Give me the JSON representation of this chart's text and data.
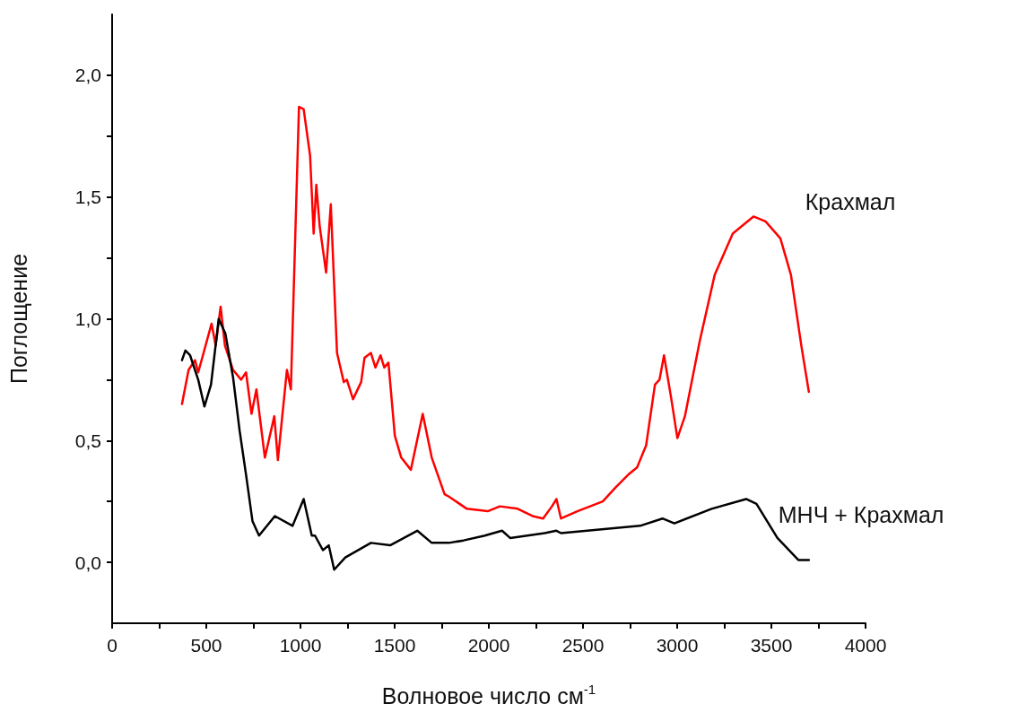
{
  "chart_data": {
    "type": "line",
    "xlabel": "Волновое число см$^{-1}$",
    "ylabel": "Поглощение",
    "xlim": [
      0,
      4000
    ],
    "xticks": [
      0,
      {
        "value": 250,
        "label": null
      },
      500,
      {
        "value": 750,
        "label": null
      },
      1000,
      {
        "value": 1250,
        "label": null
      },
      1500,
      {
        "value": 1750,
        "label": null
      },
      2000,
      {
        "value": 2250,
        "label": null
      },
      2500,
      {
        "value": 2750,
        "label": null
      },
      3000,
      {
        "value": 3250,
        "label": null
      },
      3500,
      {
        "value": 3750,
        "label": null
      },
      4000
    ],
    "ylim": [
      -0.25,
      2.25
    ],
    "yticks": [
      {
        "value": 0,
        "label": "0,0"
      },
      {
        "value": 0.25,
        "label": null
      },
      {
        "value": 0.5,
        "label": "0,5"
      },
      {
        "value": 0.75,
        "label": null
      },
      {
        "value": 1,
        "label": "1,0"
      },
      {
        "value": 1.25,
        "label": null
      },
      {
        "value": 1.5,
        "label": "1,5"
      },
      {
        "value": 1.75,
        "label": null
      },
      {
        "value": 2,
        "label": "2,0"
      }
    ],
    "grid": false,
    "legend": false,
    "marker": "none",
    "line_style": "solid",
    "series": [
      {
        "name": "Крахмал",
        "color": "#ff0000",
        "x": [
          371,
          406,
          440,
          457,
          482,
          528,
          550,
          576,
          599,
          642,
          685,
          711,
          740,
          766,
          811,
          861,
          880,
          928,
          949,
          992,
          1017,
          1051,
          1070,
          1084,
          1102,
          1136,
          1161,
          1194,
          1230,
          1246,
          1279,
          1322,
          1340,
          1374,
          1398,
          1425,
          1445,
          1467,
          1501,
          1535,
          1586,
          1649,
          1697,
          1765,
          1788,
          1883,
          1994,
          2058,
          2153,
          2232,
          2288,
          2335,
          2359,
          2383,
          2470,
          2605,
          2676,
          2740,
          2787,
          2835,
          2882,
          2906,
          2930,
          2969,
          3001,
          3041,
          3120,
          3199,
          3295,
          3405,
          3469,
          3548,
          3604,
          3659,
          3699
        ],
        "values": [
          0.65,
          0.79,
          0.83,
          0.78,
          0.85,
          0.98,
          0.89,
          1.05,
          0.89,
          0.79,
          0.75,
          0.78,
          0.61,
          0.71,
          0.43,
          0.6,
          0.42,
          0.79,
          0.71,
          1.87,
          1.86,
          1.67,
          1.35,
          1.55,
          1.38,
          1.19,
          1.47,
          0.86,
          0.74,
          0.75,
          0.67,
          0.74,
          0.84,
          0.86,
          0.8,
          0.85,
          0.8,
          0.82,
          0.52,
          0.43,
          0.38,
          0.61,
          0.43,
          0.28,
          0.27,
          0.22,
          0.21,
          0.23,
          0.22,
          0.19,
          0.18,
          0.23,
          0.26,
          0.18,
          0.21,
          0.25,
          0.31,
          0.36,
          0.39,
          0.48,
          0.73,
          0.75,
          0.85,
          0.67,
          0.51,
          0.6,
          0.91,
          1.18,
          1.35,
          1.42,
          1.4,
          1.33,
          1.18,
          0.89,
          0.7
        ]
      },
      {
        "name": "МНЧ + Крахмал",
        "color": "#000000",
        "x": [
          371,
          389,
          414,
          457,
          490,
          525,
          566,
          601,
          642,
          677,
          711,
          745,
          780,
          864,
          958,
          1017,
          1060,
          1077,
          1119,
          1150,
          1179,
          1238,
          1374,
          1476,
          1620,
          1697,
          1788,
          1866,
          1979,
          2070,
          2113,
          2296,
          2359,
          2383,
          2803,
          2922,
          2985,
          3183,
          3366,
          3421,
          3532,
          3643,
          3699
        ],
        "values": [
          0.83,
          0.87,
          0.85,
          0.75,
          0.64,
          0.73,
          1.0,
          0.94,
          0.76,
          0.54,
          0.36,
          0.17,
          0.11,
          0.19,
          0.15,
          0.26,
          0.11,
          0.11,
          0.05,
          0.07,
          -0.03,
          0.02,
          0.08,
          0.07,
          0.13,
          0.08,
          0.08,
          0.09,
          0.11,
          0.13,
          0.1,
          0.12,
          0.13,
          0.12,
          0.15,
          0.18,
          0.16,
          0.22,
          0.26,
          0.24,
          0.1,
          0.01,
          0.01
        ]
      }
    ]
  }
}
